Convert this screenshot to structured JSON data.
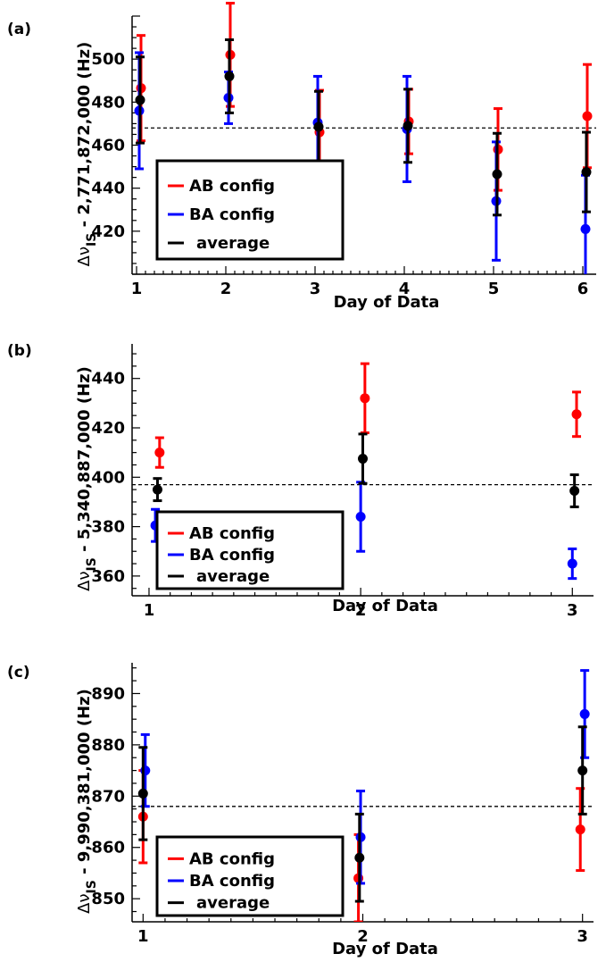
{
  "chart_data": [
    {
      "type": "scatter",
      "panel_label": "(a)",
      "xlabel": "Day of Data",
      "ylabel_main": "Δν",
      "ylabel_sub": "IS",
      "ylabel_rest": " - 2,771,872,000 (Hz)",
      "x_ticks": [
        "1",
        "2",
        "3",
        "4",
        "5",
        "6"
      ],
      "y_ticks": [
        "420",
        "440",
        "460",
        "480",
        "500"
      ],
      "xlim": [
        0.95,
        6.15
      ],
      "ylim": [
        400,
        520
      ],
      "reference_line": 468,
      "legend": [
        "AB config",
        "BA config",
        "average"
      ],
      "series": [
        {
          "name": "AB config",
          "color": "#ff0000",
          "points": [
            [
              1.05,
              486.5,
              24.5
            ],
            [
              2.05,
              502,
              24
            ],
            [
              3.05,
              466,
              19.5
            ],
            [
              4.05,
              471,
              15
            ],
            [
              5.05,
              458,
              19
            ],
            [
              6.05,
              473.5,
              24
            ]
          ]
        },
        {
          "name": "BA config",
          "color": "#0000ff",
          "points": [
            [
              1.03,
              476,
              27
            ],
            [
              2.03,
              482,
              12
            ],
            [
              3.03,
              470.5,
              21.5
            ],
            [
              4.03,
              467.5,
              24.5
            ],
            [
              5.03,
              434,
              27.5
            ],
            [
              6.03,
              421,
              25
            ]
          ]
        },
        {
          "name": "average",
          "color": "#000000",
          "points": [
            [
              1.04,
              481,
              20
            ],
            [
              2.04,
              492,
              17
            ],
            [
              3.04,
              468.5,
              16.5
            ],
            [
              4.04,
              469,
              17
            ],
            [
              5.04,
              446.5,
              19
            ],
            [
              6.04,
              447.5,
              18.5
            ]
          ]
        }
      ]
    },
    {
      "type": "scatter",
      "panel_label": "(b)",
      "xlabel": "Day of Data",
      "ylabel_main": "Δν",
      "ylabel_sub": "IS",
      "ylabel_rest": " - 5,340,887,000 (Hz)",
      "x_ticks": [
        "1",
        "2",
        "3"
      ],
      "y_ticks": [
        "360",
        "380",
        "400",
        "420",
        "440"
      ],
      "xlim": [
        0.92,
        3.1
      ],
      "ylim": [
        352,
        454
      ],
      "reference_line": 397,
      "legend": [
        "AB config",
        "BA config",
        "average"
      ],
      "series": [
        {
          "name": "AB config",
          "color": "#ff0000",
          "points": [
            [
              1.05,
              410,
              6
            ],
            [
              2.02,
              432,
              14
            ],
            [
              3.02,
              425.5,
              9
            ]
          ]
        },
        {
          "name": "BA config",
          "color": "#0000ff",
          "points": [
            [
              1.03,
              380.5,
              6.5
            ],
            [
              2.0,
              384,
              14
            ],
            [
              3.0,
              365,
              6
            ]
          ]
        },
        {
          "name": "average",
          "color": "#000000",
          "points": [
            [
              1.04,
              395,
              4.5
            ],
            [
              2.01,
              407.5,
              10
            ],
            [
              3.01,
              394.5,
              6.5
            ]
          ]
        }
      ]
    },
    {
      "type": "scatter",
      "panel_label": "(c)",
      "xlabel": "Day of Data",
      "ylabel_main": "Δν",
      "ylabel_sub": "IS",
      "ylabel_rest": " - 9,990,381,000 (Hz)",
      "x_ticks": [
        "1",
        "2",
        "3"
      ],
      "y_ticks": [
        "850",
        "860",
        "870",
        "880",
        "890"
      ],
      "xlim": [
        0.95,
        3.05
      ],
      "ylim": [
        845.5,
        896
      ],
      "reference_line": 868,
      "legend": [
        "AB config",
        "BA config",
        "average"
      ],
      "series": [
        {
          "name": "AB config",
          "color": "#ff0000",
          "points": [
            [
              1.0,
              866,
              9
            ],
            [
              1.98,
              854,
              8.5
            ],
            [
              2.99,
              863.5,
              8
            ]
          ]
        },
        {
          "name": "BA config",
          "color": "#0000ff",
          "points": [
            [
              1.01,
              875,
              7
            ],
            [
              1.99,
              862,
              9
            ],
            [
              3.01,
              886,
              8.5
            ]
          ]
        },
        {
          "name": "average",
          "color": "#000000",
          "points": [
            [
              1.0,
              870.5,
              9
            ],
            [
              1.985,
              858,
              8.5
            ],
            [
              3.0,
              875,
              8.5
            ]
          ]
        }
      ]
    }
  ]
}
